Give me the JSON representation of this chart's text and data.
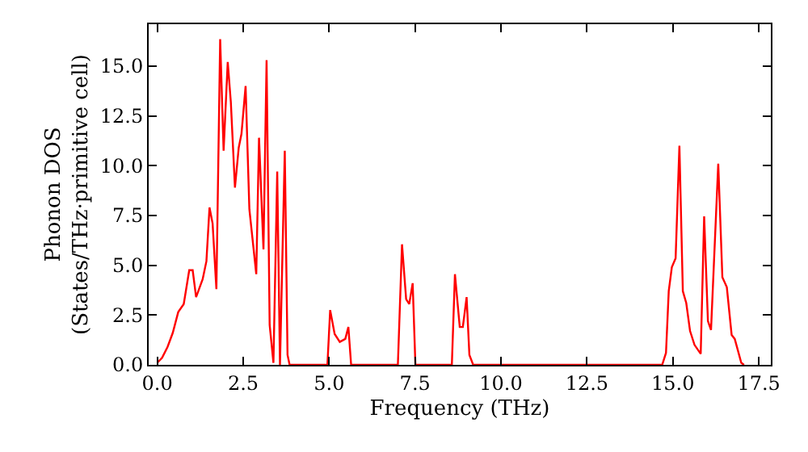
{
  "chart_data": {
    "type": "line",
    "xlabel": "Frequency (THz)",
    "ylabel": "Phonon DOS\n(States/THz·primitive cell)",
    "x": [
      0,
      0.14,
      0.3,
      0.45,
      0.61,
      0.77,
      0.93,
      1.03,
      1.13,
      1.32,
      1.43,
      1.52,
      1.61,
      1.72,
      1.83,
      1.93,
      2.05,
      2.14,
      2.26,
      2.37,
      2.45,
      2.57,
      2.68,
      2.88,
      2.96,
      3.09,
      3.18,
      3.27,
      3.38,
      3.49,
      3.57,
      3.71,
      3.79,
      3.85,
      4.95,
      5.03,
      5.16,
      5.31,
      5.47,
      5.56,
      5.64,
      7.0,
      7.12,
      7.24,
      7.33,
      7.43,
      7.51,
      8.57,
      8.66,
      8.8,
      8.89,
      9.0,
      9.08,
      9.19,
      14.69,
      14.8,
      14.88,
      14.97,
      15.08,
      15.19,
      15.29,
      15.39,
      15.5,
      15.63,
      15.81,
      15.91,
      16.02,
      16.11,
      16.32,
      16.44,
      16.57,
      16.71,
      16.8,
      16.99,
      17.07
    ],
    "series": [
      {
        "color": "#ff0000",
        "values": [
          0.1,
          0.35,
          0.9,
          1.6,
          2.65,
          3.05,
          4.75,
          4.75,
          3.4,
          4.3,
          5.2,
          7.9,
          7.1,
          3.8,
          16.35,
          10.75,
          15.2,
          13.2,
          8.9,
          10.9,
          11.6,
          14.0,
          7.8,
          4.55,
          11.4,
          5.8,
          15.3,
          2.0,
          0.1,
          9.7,
          0,
          10.75,
          0.5,
          0,
          0,
          2.75,
          1.55,
          1.15,
          1.3,
          1.9,
          0,
          0,
          6.05,
          3.3,
          3.05,
          4.1,
          0,
          0,
          4.55,
          1.9,
          1.9,
          3.4,
          0.5,
          0,
          0,
          0.6,
          3.7,
          4.9,
          5.35,
          11.0,
          3.7,
          3.1,
          1.7,
          1.0,
          0.55,
          7.45,
          2.2,
          1.75,
          10.1,
          4.4,
          3.9,
          1.5,
          1.3,
          0.1,
          0
        ]
      }
    ],
    "xlim": [
      -0.25,
      17.85
    ],
    "ylim": [
      0,
      17.1
    ],
    "xticks": [
      {
        "value": 0,
        "label": "0.0"
      },
      {
        "value": 2.5,
        "label": "2.5"
      },
      {
        "value": 5,
        "label": "5.0"
      },
      {
        "value": 7.5,
        "label": "7.5"
      },
      {
        "value": 10,
        "label": "10.0"
      },
      {
        "value": 12.5,
        "label": "12.5"
      },
      {
        "value": 15,
        "label": "15.0"
      },
      {
        "value": 17.5,
        "label": "17.5"
      }
    ],
    "yticks": [
      {
        "value": 0,
        "label": "0.0"
      },
      {
        "value": 2.5,
        "label": "2.5"
      },
      {
        "value": 5,
        "label": "5.0"
      },
      {
        "value": 7.5,
        "label": "7.5"
      },
      {
        "value": 10,
        "label": "10.0"
      },
      {
        "value": 12.5,
        "label": "12.5"
      },
      {
        "value": 15,
        "label": "15.0"
      }
    ],
    "marker": "none",
    "line_style": "solid"
  }
}
